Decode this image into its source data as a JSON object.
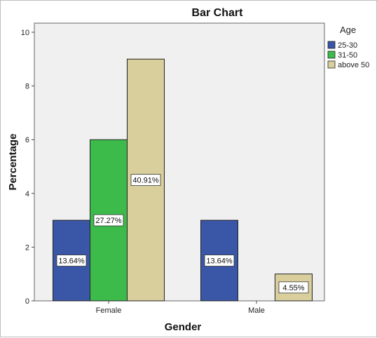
{
  "chart_data": {
    "type": "bar",
    "title": "Bar Chart",
    "xlabel": "Gender",
    "ylabel": "Percentage",
    "categories": [
      "Female",
      "Male"
    ],
    "ylim": [
      0,
      10
    ],
    "yticks": [
      "0",
      "2",
      "4",
      "6",
      "8",
      "10"
    ],
    "legend": {
      "title": "Age",
      "placement": "top-right"
    },
    "series": [
      {
        "name": "25-30",
        "color": "#3a56a6",
        "values": [
          3,
          3
        ],
        "labels": [
          "13.64%",
          "13.64%"
        ]
      },
      {
        "name": "31-50",
        "color": "#3dbb4a",
        "values": [
          6,
          0
        ],
        "labels": [
          "27.27%",
          ""
        ]
      },
      {
        "name": "above 50",
        "color": "#d8cf9c",
        "values": [
          9,
          1
        ],
        "labels": [
          "40.91%",
          "4.55%"
        ]
      }
    ],
    "grid": false,
    "plot_background": "#f0f0f0"
  }
}
